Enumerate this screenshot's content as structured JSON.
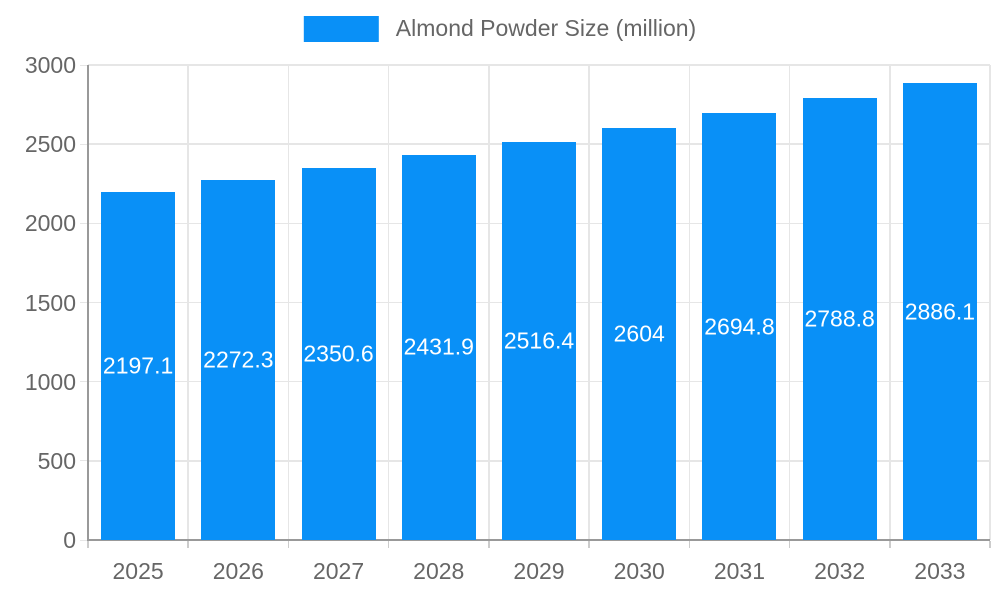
{
  "legend": {
    "label": "Almond Powder Size (million)"
  },
  "chart_data": {
    "type": "bar",
    "title": "Almond Powder Size (million)",
    "categories": [
      "2025",
      "2026",
      "2027",
      "2028",
      "2029",
      "2030",
      "2031",
      "2032",
      "2033"
    ],
    "series": [
      {
        "name": "Almond Powder Size (million)",
        "values": [
          2197.1,
          2272.3,
          2350.6,
          2431.9,
          2516.4,
          2604,
          2694.8,
          2788.8,
          2886.1
        ]
      }
    ],
    "value_labels": [
      "2197.1",
      "2272.3",
      "2350.6",
      "2431.9",
      "2516.4",
      "2604",
      "2694.8",
      "2788.8",
      "2886.1"
    ],
    "xlabel": "",
    "ylabel": "",
    "ylim": [
      0,
      3000
    ],
    "yticks": [
      0,
      500,
      1000,
      1500,
      2000,
      2500,
      3000
    ],
    "grid": true,
    "legend_position": "top",
    "colors": {
      "bar": "#0990F7",
      "grid": "#e6e6e6",
      "axis": "#999999",
      "tick": "#cccccc",
      "text": "#666666",
      "bar_label": "#ffffff"
    }
  }
}
